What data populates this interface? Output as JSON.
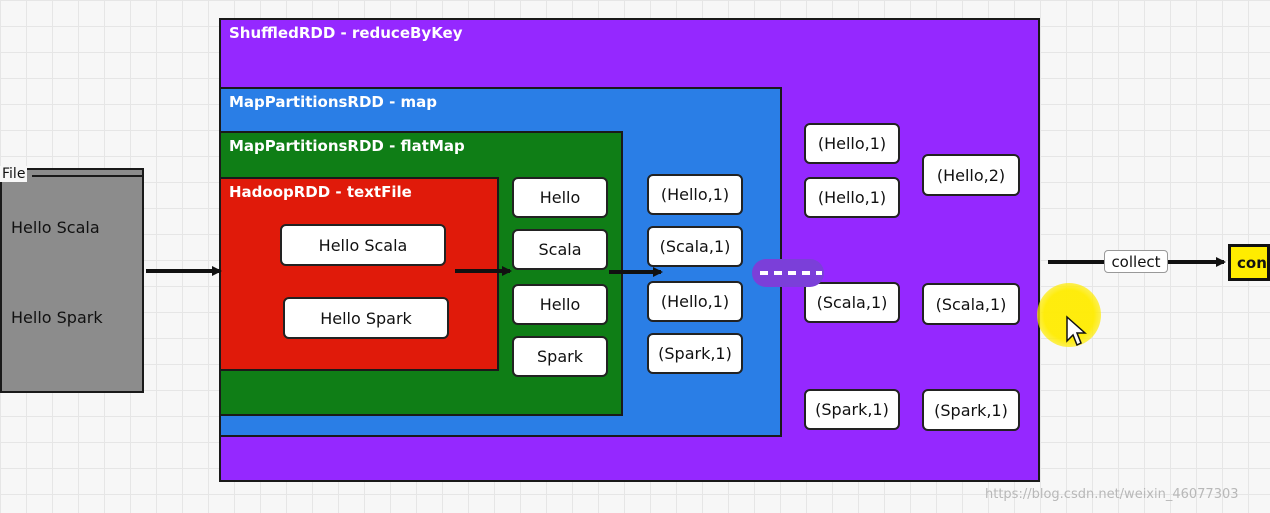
{
  "file": {
    "label": "File",
    "lines": [
      "Hello Scala",
      "Hello Spark"
    ]
  },
  "rdds": {
    "shuffled": "ShuffledRDD - reduceByKey",
    "map": "MapPartitionsRDD - map",
    "flatmap": "MapPartitionsRDD - flatMap",
    "hadoop": "HadoopRDD - textFile"
  },
  "hadoop_lines": [
    "Hello Scala",
    "Hello Spark"
  ],
  "flatmap_words": [
    "Hello",
    "Scala",
    "Hello",
    "Spark"
  ],
  "map_pairs": [
    "(Hello,1)",
    "(Scala,1)",
    "(Hello,1)",
    "(Spark,1)"
  ],
  "shuffle_groups": [
    "(Hello,1)",
    "(Hello,1)",
    "(Scala,1)",
    "(Spark,1)"
  ],
  "reduced": [
    "(Hello,2)",
    "(Scala,1)",
    "(Spark,1)"
  ],
  "collect_label": "collect",
  "result_label": "con",
  "watermark": "https://blog.csdn.net/weixin_46077303",
  "colors": {
    "shuffled": "#9528ff",
    "map": "#2a7ee6",
    "flatmap": "#0f7e16",
    "hadoop": "#e01a0a",
    "file": "#8c8c8c",
    "result": "#ffec00"
  }
}
